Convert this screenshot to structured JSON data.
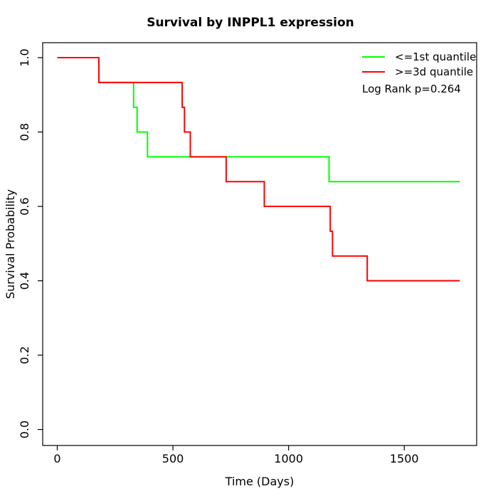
{
  "chart_data": {
    "type": "line",
    "subtype": "kaplan-meier-step",
    "title": "Survival by INPPL1 expression",
    "xlabel": "Time (Days)",
    "ylabel": "Survival Probability",
    "xlim": [
      -63,
      1813
    ],
    "ylim": [
      -0.043,
      1.0402
    ],
    "grid": false,
    "legend_position": "top-right",
    "annotation": "Log Rank p=0.264",
    "xticks": [
      {
        "value": 0,
        "label": "0"
      },
      {
        "value": 500,
        "label": "500"
      },
      {
        "value": 1000,
        "label": "1000"
      },
      {
        "value": 1500,
        "label": "1500"
      }
    ],
    "yticks": [
      {
        "value": 0.0,
        "label": "0.0"
      },
      {
        "value": 0.2,
        "label": "0.2"
      },
      {
        "value": 0.4,
        "label": "0.4"
      },
      {
        "value": 0.6,
        "label": "0.6"
      },
      {
        "value": 0.8,
        "label": "0.8"
      },
      {
        "value": 1.0,
        "label": "1.0"
      }
    ],
    "series": [
      {
        "name": "<=1st quantile",
        "color": "#00FF00",
        "steps": [
          [
            0,
            1.0
          ],
          [
            180,
            0.9333
          ],
          [
            330,
            0.8667
          ],
          [
            345,
            0.8
          ],
          [
            390,
            0.7333
          ],
          [
            1175,
            0.6667
          ],
          [
            1740,
            0.6667
          ]
        ]
      },
      {
        "name": ">=3d quantile",
        "color": "#FF0000",
        "steps": [
          [
            0,
            1.0
          ],
          [
            180,
            0.9333
          ],
          [
            540,
            0.8667
          ],
          [
            550,
            0.8
          ],
          [
            575,
            0.7333
          ],
          [
            730,
            0.6667
          ],
          [
            895,
            0.6
          ],
          [
            1180,
            0.5333
          ],
          [
            1190,
            0.4667
          ],
          [
            1340,
            0.4
          ],
          [
            1740,
            0.4
          ]
        ]
      }
    ]
  }
}
